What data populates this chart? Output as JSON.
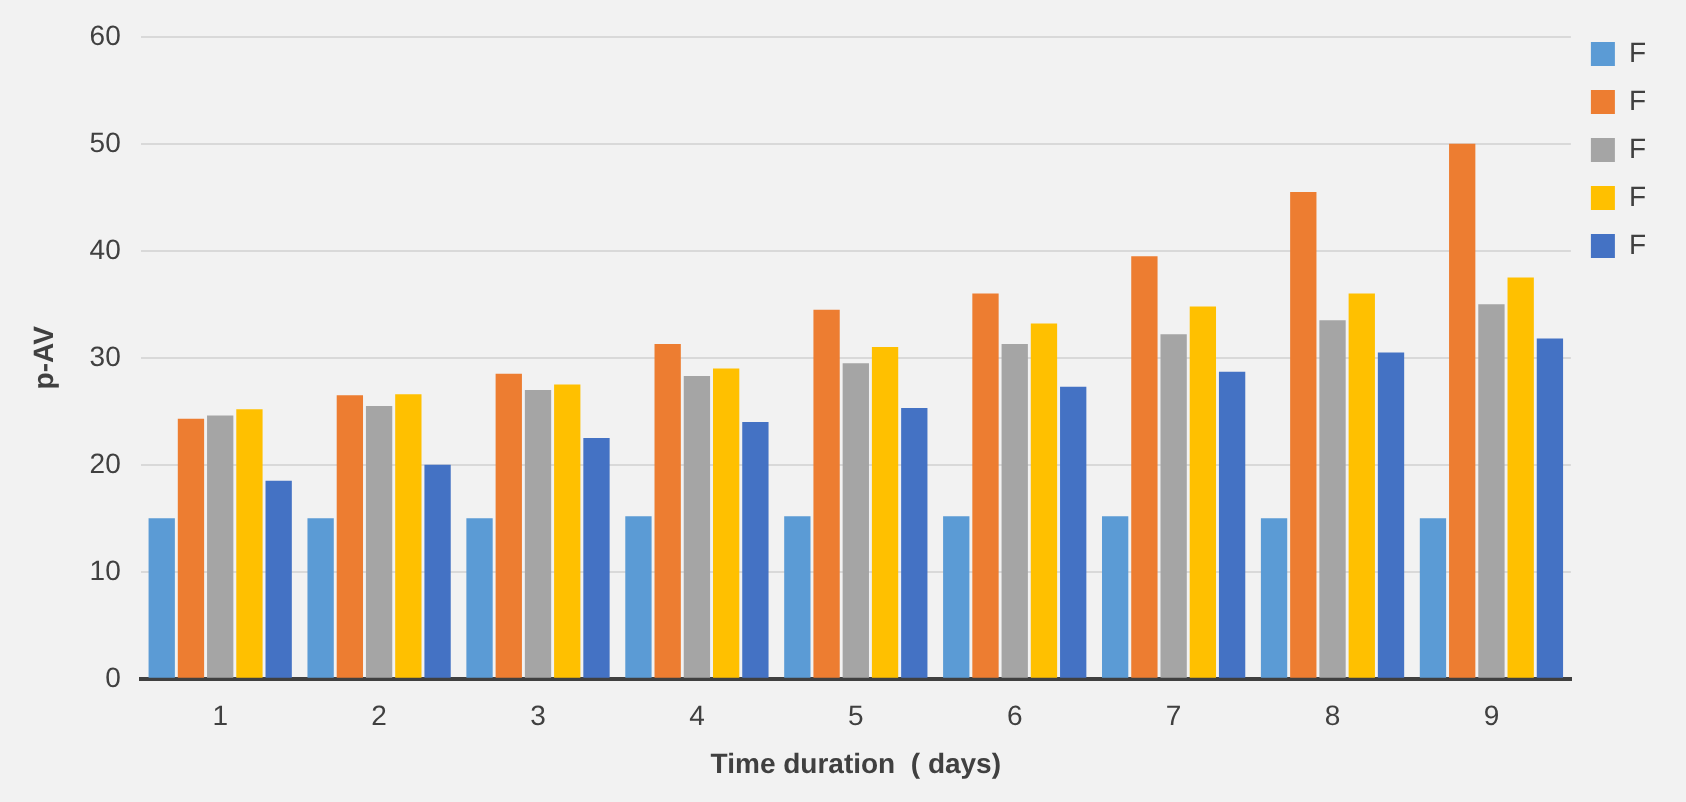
{
  "chart_data": {
    "type": "bar",
    "xlabel": "Time duration  ( days)",
    "ylabel": "p-AV",
    "categories": [
      "1",
      "2",
      "3",
      "4",
      "5",
      "6",
      "7",
      "8",
      "9"
    ],
    "series": [
      {
        "name": "F",
        "color": "#5b9bd5",
        "values": [
          15,
          15,
          15,
          15.2,
          15.2,
          15.2,
          15.2,
          15,
          15
        ]
      },
      {
        "name": "F",
        "color": "#ed7d31",
        "values": [
          24.3,
          26.5,
          28.5,
          31.3,
          34.5,
          36,
          39.5,
          45.5,
          50
        ]
      },
      {
        "name": "F",
        "color": "#a5a5a5",
        "values": [
          24.6,
          25.5,
          27,
          28.3,
          29.5,
          31.3,
          32.2,
          33.5,
          35
        ]
      },
      {
        "name": "F",
        "color": "#ffc000",
        "values": [
          25.2,
          26.6,
          27.5,
          29,
          31,
          33.2,
          34.8,
          36,
          37.5
        ]
      },
      {
        "name": "F",
        "color": "#4472c4",
        "values": [
          18.5,
          20,
          22.5,
          24,
          25.3,
          27.3,
          28.7,
          30.5,
          31.8
        ]
      }
    ],
    "ylim": [
      0,
      60
    ],
    "yticks": [
      0,
      10,
      20,
      30,
      40,
      50,
      60
    ],
    "grid": "y",
    "legend": "top right"
  }
}
